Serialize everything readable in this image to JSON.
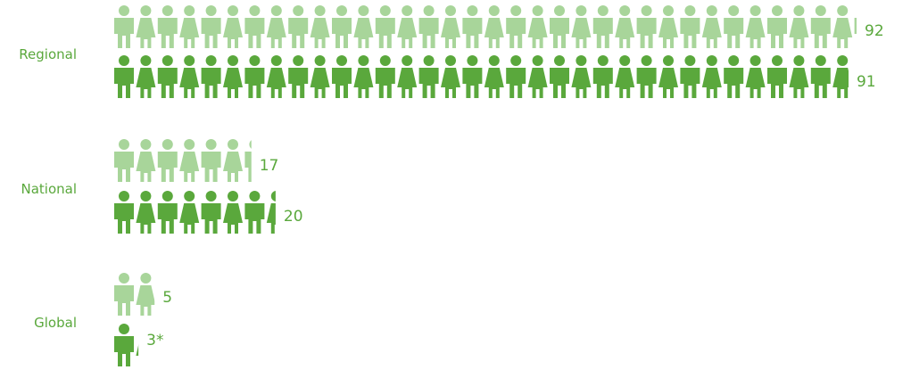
{
  "chart_data": {
    "type": "pictogram-bar",
    "title": "",
    "xlabel": "",
    "ylabel": "",
    "categories": [
      "Regional",
      "National",
      "Global"
    ],
    "series": [
      {
        "values": [
          92,
          17,
          5
        ],
        "value_labels": [
          "92",
          "17",
          "5"
        ]
      },
      {
        "values": [
          91,
          20,
          3
        ],
        "value_labels": [
          "91",
          "20",
          "3*"
        ]
      }
    ],
    "colors": [
      "#a8d59a",
      "#5aa83c"
    ],
    "label_color": "#5aa83c",
    "grid": false,
    "legend": "none"
  }
}
